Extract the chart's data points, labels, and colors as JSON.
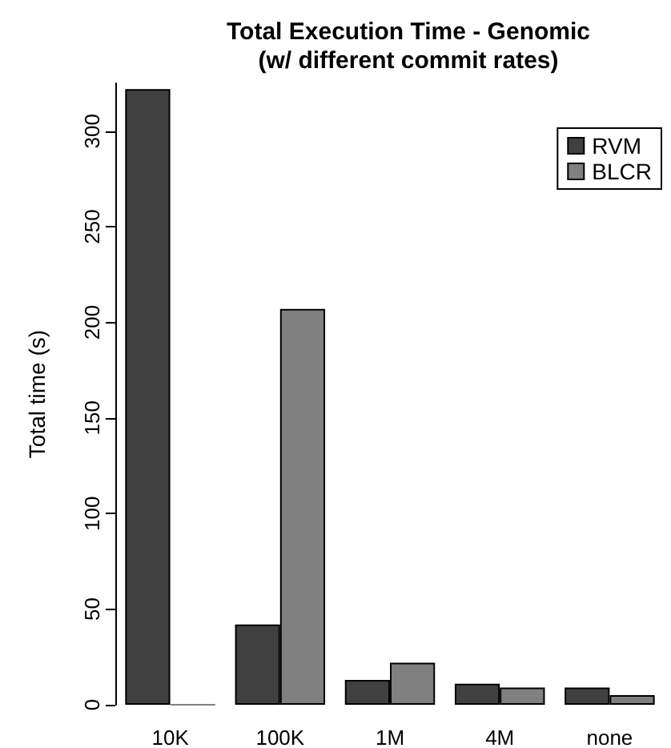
{
  "chart_data": {
    "type": "bar",
    "title": "Total Execution Time - Genomic\n(w/ different commit rates)",
    "ylabel": "Total time (s)",
    "categories": [
      "10K",
      "100K",
      "1M",
      "4M",
      "none"
    ],
    "series": [
      {
        "name": "RVM",
        "color": "#404040",
        "values": [
          322,
          42,
          13,
          11,
          9
        ]
      },
      {
        "name": "BLCR",
        "color": "#808080",
        "values": [
          0,
          207,
          22,
          9,
          5
        ]
      }
    ],
    "ylim": [
      0,
      325
    ],
    "yticks": [
      0,
      50,
      100,
      150,
      200,
      250,
      300
    ],
    "grid": false,
    "legend": "top right"
  }
}
